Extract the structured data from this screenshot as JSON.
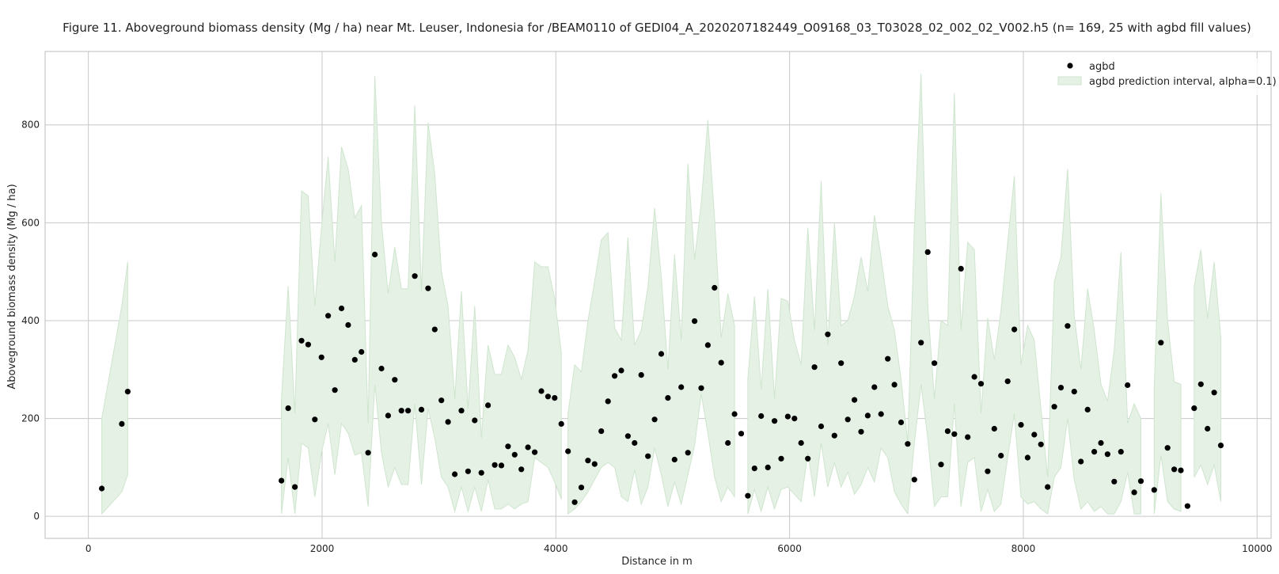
{
  "chart_data": {
    "type": "scatter",
    "title": "Figure 11. Aboveground biomass density (Mg / ha) near Mt. Leuser, Indonesia for /BEAM0110 of GEDI04_A_2020207182449_O09168_03_T03028_02_002_02_V002.h5 (n= 169, 25 with agbd fill values)",
    "xlabel": "Distance in m",
    "ylabel": "Aboveground biomass density (Mg / ha)",
    "xlim": [
      -370,
      10120
    ],
    "ylim": [
      -45,
      950
    ],
    "xticks": [
      0,
      2000,
      4000,
      6000,
      8000,
      10000
    ],
    "yticks": [
      0,
      200,
      400,
      600,
      800
    ],
    "xtick_labels": [
      "0",
      "2000",
      "4000",
      "6000",
      "8000",
      "10000"
    ],
    "ytick_labels": [
      "0",
      "200",
      "400",
      "600",
      "800"
    ],
    "grid": true,
    "legend_position": "top-right",
    "colors": {
      "points": "#000000",
      "band_fill": "#e4f1e4",
      "band_edge": "#cfe5cf",
      "grid": "#c8c8c8",
      "frame": "#bdbdbd"
    },
    "legend": [
      {
        "label": "agbd",
        "marker": "dot"
      },
      {
        "label": "agbd prediction interval, alpha=0.1)",
        "marker": "patch"
      }
    ],
    "series": [
      {
        "name": "agbd",
        "type": "scatter",
        "x": [
          115,
          286,
          337,
          1652,
          1710,
          1767,
          1824,
          1881,
          1938,
          1995,
          2052,
          2109,
          2166,
          2223,
          2280,
          2337,
          2394,
          2451,
          2508,
          2565,
          2622,
          2679,
          2736,
          2793,
          2850,
          2907,
          2964,
          3021,
          3078,
          3135,
          3192,
          3249,
          3306,
          3363,
          3420,
          3477,
          3534,
          3591,
          3648,
          3705,
          3762,
          3819,
          3876,
          3933,
          3990,
          4047,
          4104,
          4161,
          4218,
          4275,
          4332,
          4389,
          4446,
          4503,
          4560,
          4617,
          4674,
          4731,
          4788,
          4845,
          4902,
          4959,
          5016,
          5073,
          5130,
          5187,
          5244,
          5301,
          5358,
          5415,
          5472,
          5529,
          5586,
          5643,
          5700,
          5757,
          5814,
          5871,
          5928,
          5985,
          6042,
          6099,
          6156,
          6213,
          6270,
          6327,
          6384,
          6441,
          6498,
          6555,
          6612,
          6669,
          6726,
          6783,
          6840,
          6897,
          6954,
          7011,
          7068,
          7125,
          7182,
          7239,
          7296,
          7353,
          7410,
          7467,
          7524,
          7581,
          7638,
          7695,
          7752,
          7809,
          7866,
          7923,
          7980,
          8037,
          8094,
          8151,
          8208,
          8265,
          8322,
          8379,
          8436,
          8493,
          8550,
          8607,
          8664,
          8721,
          8778,
          8835,
          8892,
          8949,
          9006,
          9120,
          9177,
          9234,
          9291,
          9348,
          9405,
          9462,
          9519,
          9576,
          9633,
          9690
        ],
        "y": [
          57,
          189,
          255,
          73,
          221,
          60,
          359,
          351,
          198,
          325,
          410,
          258,
          425,
          391,
          320,
          336,
          130,
          535,
          302,
          206,
          279,
          216,
          216,
          491,
          218,
          466,
          382,
          237,
          193,
          86,
          216,
          92,
          196,
          89,
          227,
          105,
          104,
          143,
          126,
          96,
          141,
          131,
          256,
          245,
          242,
          189,
          133,
          29,
          59,
          114,
          107,
          174,
          235,
          287,
          298,
          164,
          150,
          289,
          123,
          198,
          332,
          242,
          116,
          264,
          130,
          399,
          262,
          350,
          467,
          314,
          150,
          209,
          169,
          42,
          98,
          205,
          100,
          195,
          118,
          204,
          200,
          150,
          118,
          305,
          184,
          372,
          165,
          313,
          198,
          238,
          173,
          206,
          264,
          209,
          322,
          269,
          192,
          148,
          75,
          355,
          540,
          313,
          106,
          174,
          168,
          506,
          162,
          285,
          271,
          92,
          179,
          124,
          276,
          382,
          187,
          120,
          167,
          147,
          60,
          224,
          263,
          389,
          255,
          112,
          218,
          132,
          150,
          127,
          71,
          132,
          268,
          49,
          72,
          54,
          355,
          140,
          96,
          94,
          21,
          221,
          270,
          179,
          253,
          145
        ]
      },
      {
        "name": "agbd prediction interval, alpha=0.1)",
        "type": "band",
        "segments": [
          {
            "x": [
              115,
              286,
              337
            ],
            "lower": [
              5,
              50,
              85
            ],
            "upper": [
              200,
              430,
              520
            ]
          },
          {
            "x": [
              1652,
              1710,
              1767,
              1824,
              1881,
              1938,
              1995,
              2052,
              2109,
              2166,
              2223,
              2280,
              2337,
              2394,
              2451,
              2508,
              2565,
              2622,
              2679,
              2736,
              2793,
              2850,
              2907,
              2964,
              3021,
              3078,
              3135,
              3192,
              3249,
              3306,
              3363,
              3420,
              3477,
              3534,
              3591,
              3648,
              3705,
              3762,
              3819,
              3876,
              3933,
              3990,
              4047
            ],
            "lower": [
              5,
              120,
              5,
              150,
              140,
              40,
              130,
              190,
              85,
              190,
              170,
              125,
              130,
              20,
              270,
              130,
              60,
              100,
              65,
              65,
              230,
              65,
              220,
              160,
              80,
              60,
              10,
              60,
              10,
              60,
              10,
              75,
              15,
              15,
              25,
              15,
              25,
              30,
              120,
              110,
              100,
              70,
              35
            ],
            "upper": [
              240,
              470,
              210,
              665,
              655,
              430,
              590,
              735,
              520,
              755,
              710,
              610,
              635,
              190,
              900,
              600,
              455,
              550,
              465,
              465,
              840,
              460,
              805,
              700,
              500,
              430,
              240,
              460,
              220,
              430,
              160,
              350,
              290,
              290,
              350,
              325,
              280,
              340,
              520,
              510,
              510,
              445,
              335
            ]
          },
          {
            "x": [
              4104,
              4161,
              4218,
              4275,
              4332,
              4389,
              4446,
              4503,
              4560,
              4617,
              4674,
              4731,
              4788,
              4845,
              4902,
              4959,
              5016,
              5073,
              5130,
              5187,
              5244,
              5301,
              5358,
              5415,
              5472,
              5529
            ],
            "lower": [
              5,
              15,
              30,
              50,
              75,
              100,
              110,
              100,
              40,
              30,
              95,
              25,
              60,
              140,
              85,
              20,
              70,
              25,
              85,
              145,
              250,
              170,
              80,
              30,
              60,
              40
            ],
            "upper": [
              210,
              310,
              295,
              400,
              480,
              565,
              580,
              385,
              360,
              570,
              350,
              380,
              470,
              630,
              490,
              300,
              535,
              360,
              720,
              525,
              640,
              810,
              610,
              365,
              455,
              390
            ]
          },
          {
            "x": [
              5643,
              5700,
              5757,
              5814,
              5871,
              5928,
              5985,
              6042,
              6099,
              6156,
              6213,
              6270,
              6327,
              6384,
              6441,
              6498,
              6555,
              6612,
              6669,
              6726,
              6783,
              6840,
              6897,
              6954,
              7011,
              7068,
              7125,
              7182,
              7239,
              7296,
              7353,
              7410,
              7467,
              7524,
              7581,
              7638,
              7695,
              7752,
              7809,
              7866,
              7923,
              7980,
              8037,
              8094,
              8151,
              8208,
              8265,
              8322,
              8379,
              8436,
              8493,
              8550,
              8607,
              8664,
              8721,
              8778,
              8835,
              8892,
              8949,
              9006
            ],
            "lower": [
              5,
              55,
              10,
              60,
              15,
              55,
              60,
              45,
              30,
              130,
              40,
              150,
              60,
              110,
              60,
              90,
              45,
              65,
              100,
              70,
              140,
              120,
              50,
              25,
              5,
              150,
              270,
              160,
              20,
              40,
              40,
              230,
              20,
              110,
              120,
              10,
              55,
              10,
              25,
              120,
              210,
              40,
              25,
              30,
              15,
              5,
              80,
              100,
              200,
              75,
              15,
              30,
              10,
              20,
              5,
              5,
              30,
              90,
              5,
              5
            ],
            "upper": [
              280,
              450,
              260,
              465,
              240,
              445,
              440,
              360,
              310,
              590,
              380,
              685,
              350,
              600,
              390,
              400,
              450,
              530,
              460,
              615,
              530,
              430,
              380,
              280,
              150,
              590,
              905,
              430,
              240,
              400,
              390,
              865,
              380,
              560,
              545,
              210,
              405,
              320,
              420,
              560,
              695,
              310,
              390,
              360,
              220,
              80,
              480,
              530,
              710,
              410,
              300,
              465,
              380,
              270,
              235,
              340,
              540,
              190,
              230,
              200
            ]
          },
          {
            "x": [
              9120,
              9177,
              9234,
              9291,
              9348
            ],
            "lower": [
              5,
              125,
              30,
              15,
              10
            ],
            "upper": [
              260,
              660,
              400,
              275,
              270
            ]
          },
          {
            "x": [
              9462,
              9519,
              9576,
              9633,
              9690
            ],
            "lower": [
              80,
              105,
              65,
              105,
              30
            ],
            "upper": [
              470,
              545,
              405,
              520,
              365
            ]
          }
        ]
      }
    ]
  }
}
